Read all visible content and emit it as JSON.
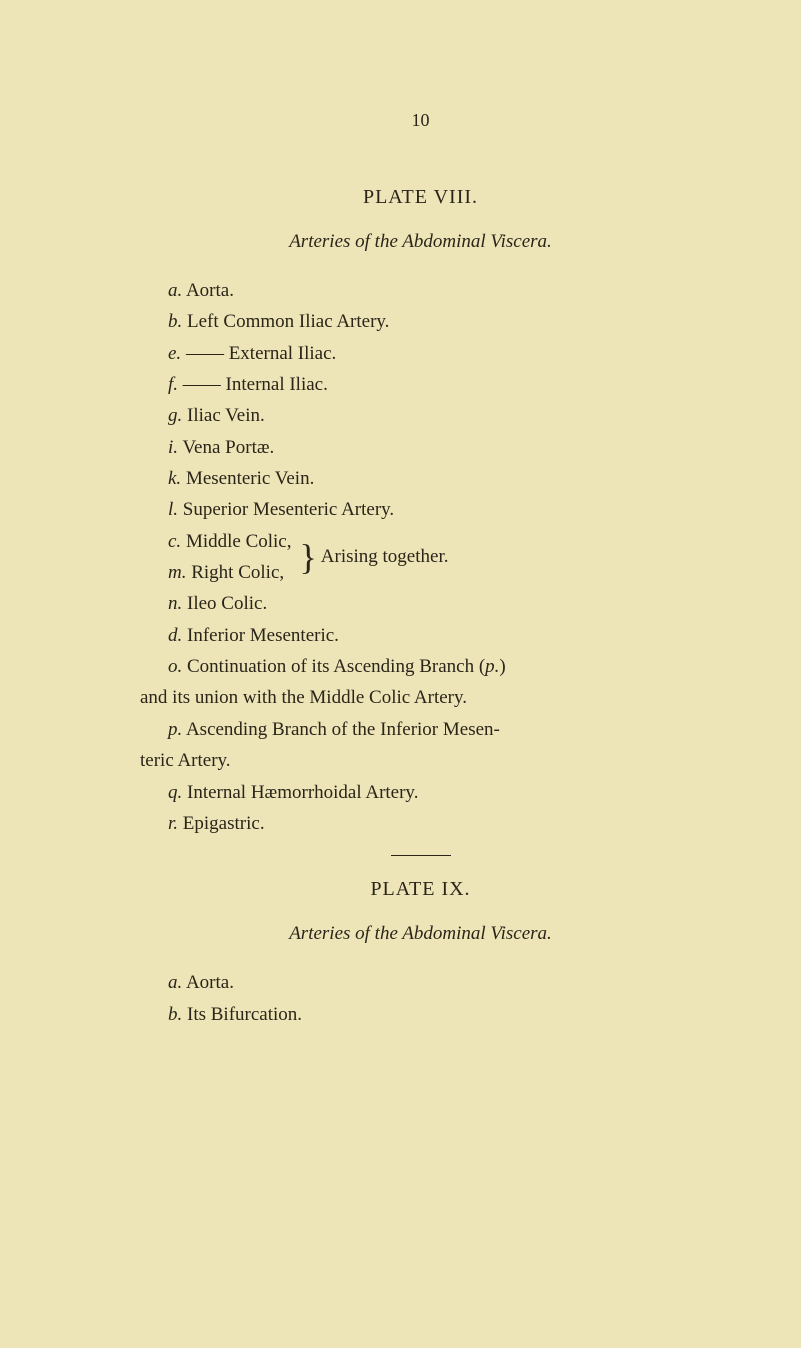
{
  "page_number": "10",
  "plate_viii": {
    "title": "PLATE VIII.",
    "subtitle": "Arteries of the Abdominal Viscera.",
    "entries": [
      {
        "label": "a.",
        "text": " Aorta."
      },
      {
        "label": "b.",
        "text": " Left Common Iliac Artery."
      },
      {
        "label": "e.",
        "text": " —— External Iliac."
      },
      {
        "label": "f.",
        "text": " —— Internal Iliac."
      },
      {
        "label": "g.",
        "text": " Iliac Vein."
      },
      {
        "label": "i.",
        "text": " Vena Portæ."
      },
      {
        "label": "k.",
        "text": " Mesenteric Vein."
      },
      {
        "label": "l.",
        "text": " Superior Mesenteric Artery."
      }
    ],
    "brace_entries": [
      {
        "label": "c.",
        "text": " Middle Colic,"
      },
      {
        "label": "m.",
        "text": " Right Colic,"
      }
    ],
    "brace_text": "Arising together.",
    "entries_after_brace": [
      {
        "label": "n.",
        "text": " Ileo Colic."
      },
      {
        "label": "d.",
        "text": " Inferior Mesenteric."
      }
    ],
    "entry_o": {
      "label": "o.",
      "text": " Continuation of its Ascending Branch (",
      "italic_p": "p.",
      "text_end": ")"
    },
    "continuation_o": "and its union with the Middle Colic Artery.",
    "entry_p": {
      "label": "p.",
      "text": " Ascending Branch of the Inferior Mesen-"
    },
    "continuation_p": "teric Artery.",
    "entries_final": [
      {
        "label": "q.",
        "text": " Internal Hæmorrhoidal Artery."
      },
      {
        "label": "r.",
        "text": " Epigastric."
      }
    ]
  },
  "plate_ix": {
    "title": "PLATE IX.",
    "subtitle": "Arteries of the Abdominal Viscera.",
    "entries": [
      {
        "label": "a.",
        "text": " Aorta."
      },
      {
        "label": "b.",
        "text": " Its Bifurcation."
      }
    ]
  }
}
